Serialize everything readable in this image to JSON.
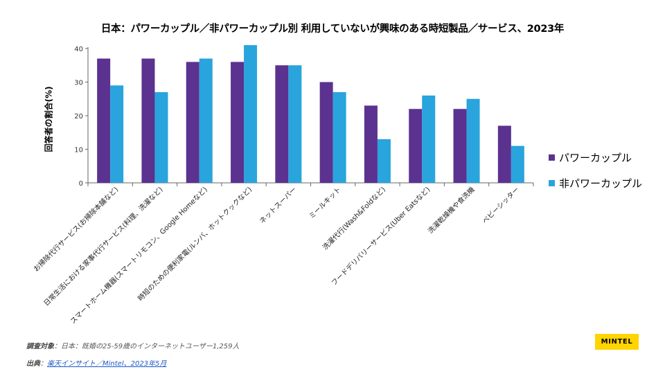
{
  "colors": {
    "power": "#5b3290",
    "non_power": "#2aa4dc",
    "axis": "#666666",
    "logo_bg": "#ffd400"
  },
  "chart_data": {
    "type": "bar",
    "title": "日本：パワーカップル／非パワーカップル別 利用していないが興味のある時短製品／サービス、2023年",
    "xlabel": "",
    "ylabel": "回答者の割合(%)",
    "ylim": [
      0,
      40
    ],
    "yticks": [
      0,
      10,
      20,
      30,
      40
    ],
    "grid": false,
    "legend_position": "right",
    "categories": [
      "お掃除代行サービス(お掃除本舗など)",
      "日常生活における家事代行サービス(料理、洗濯など)",
      "スマートホーム機器(スマートリモコン、Google Homeなど)",
      "時短のための便利家電(ルンバ、ホットクックなど)",
      "ネットスーパー",
      "ミールキット",
      "洗濯代行(Wash&Foldなど)",
      "フードデリバリーサービス(Uber Eatsなど)",
      "洗濯乾燥機や食洗機",
      "ベビーシッター"
    ],
    "series": [
      {
        "name": "パワーカップル",
        "color": "#5b3290",
        "values": [
          37,
          37,
          36,
          36,
          35,
          30,
          23,
          22,
          22,
          17
        ]
      },
      {
        "name": "非パワーカップル",
        "color": "#2aa4dc",
        "values": [
          29,
          27,
          37,
          41,
          35,
          27,
          13,
          26,
          25,
          11
        ]
      }
    ]
  },
  "footer": {
    "survey_label": "調査対象",
    "survey_text": "：日本：既婚の25-59歳のインターネットユーザー1,259人",
    "source_label": "出典",
    "source_sep": "：",
    "source_link": "楽天インサイト／Mintel、2023年5月"
  },
  "logo": {
    "text": "MINTEL"
  }
}
